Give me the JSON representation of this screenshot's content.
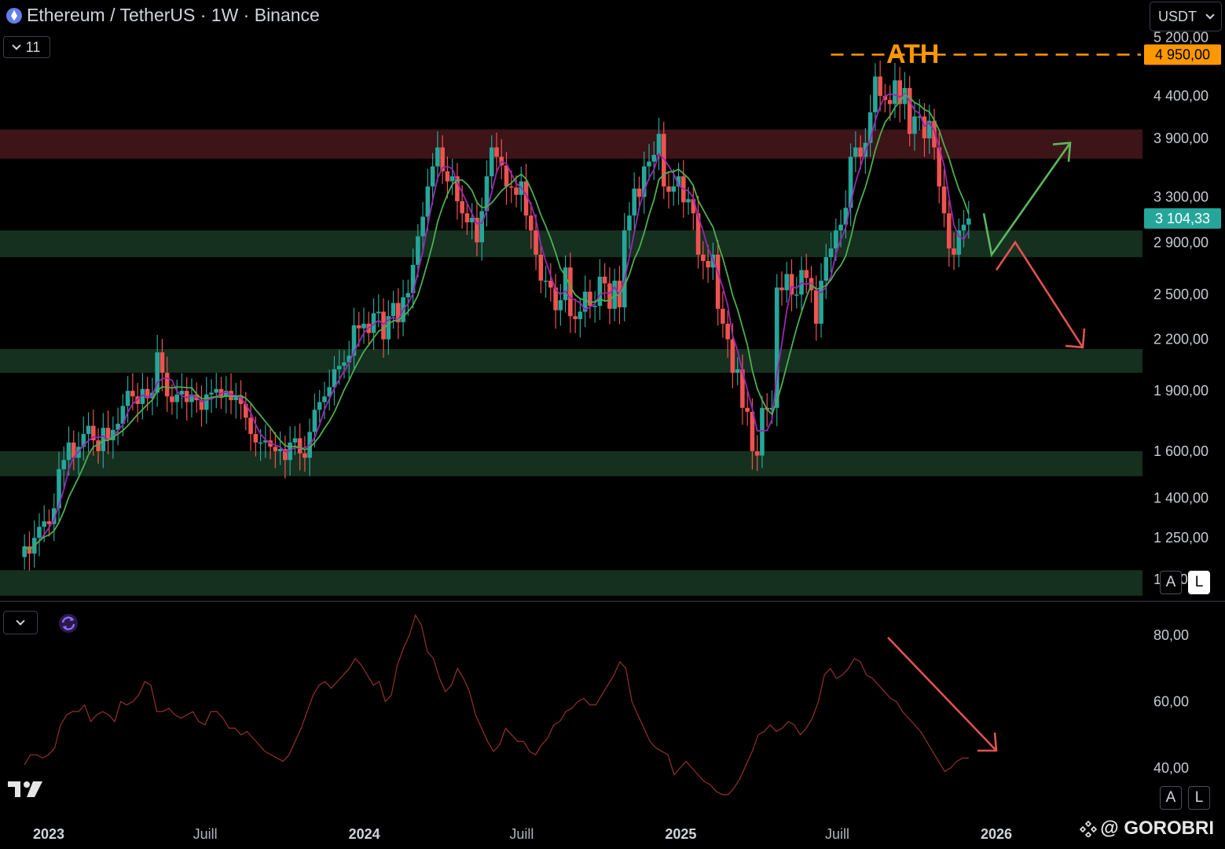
{
  "header": {
    "title": "Ethereum / TetherUS · 1W · Binance",
    "indicator_count": "11",
    "currency": "USDT"
  },
  "scale_buttons": {
    "auto": "A",
    "log": "L"
  },
  "annotation": {
    "ath_label": "ATH"
  },
  "watermark": {
    "text": "@ GOROBRI"
  },
  "colors": {
    "up": "#26a69a",
    "down": "#ef5350",
    "ma_purple": "#9c27b0",
    "ma_green": "#4caf50",
    "ath": "#ff9800",
    "resistance_zone": "#3d1418",
    "support_zone": "#163020",
    "last_price_bg": "#26a69a",
    "rsi_line": "#8b2d2d",
    "arrow_up": "#5cb85c",
    "arrow_down": "#e0524f"
  },
  "icons": [
    "ethereum-coin-icon",
    "chevron-down-icon",
    "refresh-icon",
    "tradingview-logo-icon",
    "binance-square-icon"
  ],
  "chart_data": [
    {
      "type": "candlestick",
      "title": "Ethereum / TetherUS · 1W · Binance",
      "scale": "log",
      "y_ticks": [
        "5 200,00",
        "4 400,00",
        "3 900,00",
        "3 300,00",
        "2 900,00",
        "2 500,00",
        "2 200,00",
        "1 900,00",
        "1 600,00",
        "1 400,00",
        "1 250,00",
        "1 110,00"
      ],
      "y_tick_values": [
        5200,
        4400,
        3900,
        3300,
        2900,
        2500,
        2200,
        1900,
        1600,
        1400,
        1250,
        1110
      ],
      "x_ticks": [
        "2023",
        "Juill",
        "2024",
        "Juill",
        "2025",
        "Juill",
        "2026"
      ],
      "x_tick_dates": [
        "2023-01-01",
        "2023-07-01",
        "2024-01-01",
        "2024-07-01",
        "2025-01-01",
        "2025-07-01",
        "2026-01-01"
      ],
      "ath_price": "4 950,00",
      "ath_value": 4950,
      "last_price": "3 104,33",
      "last_value": 3104.33,
      "zones": [
        {
          "kind": "resistance",
          "low": 3680,
          "high": 4000
        },
        {
          "kind": "support",
          "low": 2780,
          "high": 3000
        },
        {
          "kind": "support",
          "low": 2000,
          "high": 2140
        },
        {
          "kind": "support",
          "low": 1490,
          "high": 1600
        },
        {
          "kind": "support",
          "low": 1060,
          "high": 1140
        }
      ],
      "projection": [
        {
          "direction": "up",
          "from": 2800,
          "to": 3850
        },
        {
          "direction": "down",
          "from": 2900,
          "to": 2150
        }
      ],
      "series_close": [
        1220,
        1195,
        1250,
        1290,
        1310,
        1300,
        1360,
        1520,
        1560,
        1640,
        1570,
        1620,
        1680,
        1720,
        1650,
        1600,
        1710,
        1650,
        1700,
        1730,
        1820,
        1900,
        1870,
        1830,
        1910,
        1860,
        1890,
        2120,
        2000,
        1870,
        1840,
        1880,
        1900,
        1840,
        1880,
        1850,
        1800,
        1880,
        1890,
        1910,
        1870,
        1900,
        1850,
        1870,
        1830,
        1760,
        1680,
        1640,
        1640,
        1650,
        1620,
        1600,
        1610,
        1560,
        1640,
        1660,
        1590,
        1570,
        1690,
        1800,
        1840,
        1870,
        1920,
        2020,
        2040,
        2060,
        2100,
        2290,
        2270,
        2300,
        2240,
        2370,
        2380,
        2200,
        2350,
        2440,
        2310,
        2480,
        2510,
        2720,
        2950,
        3120,
        3400,
        3600,
        3800,
        3550,
        3450,
        3500,
        3260,
        3150,
        3070,
        3110,
        2900,
        3170,
        3500,
        3800,
        3700,
        3610,
        3400,
        3390,
        3320,
        3450,
        3130,
        3000,
        2800,
        2600,
        2600,
        2550,
        2390,
        2460,
        2700,
        2350,
        2330,
        2380,
        2520,
        2420,
        2420,
        2630,
        2580,
        2400,
        2600,
        2410,
        3000,
        3130,
        3380,
        3300,
        3600,
        3650,
        3720,
        3950,
        3400,
        3350,
        3400,
        3500,
        3250,
        3280,
        3150,
        2800,
        2750,
        2700,
        2800,
        2400,
        2300,
        2200,
        2000,
        2020,
        1810,
        1790,
        1600,
        1580,
        1810,
        1800,
        1810,
        2550,
        2530,
        2650,
        2500,
        2500,
        2680,
        2620,
        2530,
        2300,
        2600,
        2780,
        2850,
        3000,
        3050,
        3200,
        3700,
        3800,
        3700,
        3850,
        4200,
        4650,
        4400,
        4350,
        4300,
        4600,
        4300,
        4500,
        3950,
        4150,
        4150,
        3900,
        4100,
        3800,
        3400,
        3150,
        2850,
        2800,
        3000,
        3050,
        3104
      ]
    },
    {
      "type": "line",
      "indicator": "RSI",
      "y_ticks": [
        "80,00",
        "60,00",
        "40,00"
      ],
      "ylim": [
        30,
        88
      ],
      "x_start": "2022-12-04",
      "x_step_days": 7,
      "values": [
        41,
        44,
        44,
        43,
        44,
        46,
        53,
        56,
        57,
        57,
        59,
        54,
        56,
        57,
        56,
        54,
        60,
        59,
        60,
        62,
        66,
        65,
        57,
        57,
        58,
        56,
        55,
        56,
        57,
        54,
        53,
        57,
        57,
        55,
        52,
        52,
        50,
        51,
        49,
        47,
        45,
        44,
        43,
        42,
        44,
        48,
        52,
        57,
        62,
        65,
        66,
        64,
        66,
        68,
        70,
        73,
        71,
        68,
        65,
        66,
        60,
        62,
        71,
        76,
        80,
        86,
        83,
        75,
        73,
        67,
        63,
        65,
        70,
        67,
        63,
        56,
        52,
        48,
        45,
        47,
        52,
        50,
        48,
        48,
        45,
        44,
        47,
        49,
        53,
        54,
        57,
        58,
        60,
        61,
        59,
        59,
        62,
        65,
        68,
        72,
        70,
        60,
        56,
        52,
        48,
        46,
        45,
        44,
        38,
        40,
        42,
        40,
        38,
        36,
        35,
        33,
        32,
        32,
        34,
        37,
        41,
        45,
        50,
        51,
        53,
        51,
        52,
        54,
        53,
        50,
        52,
        55,
        60,
        68,
        70,
        67,
        68,
        70,
        73,
        72,
        68,
        67,
        65,
        63,
        61,
        60,
        57,
        55,
        53,
        51,
        48,
        45,
        42,
        39,
        40,
        42,
        43,
        43
      ],
      "trend_arrow": {
        "from_value": 76,
        "to_value": 45
      }
    }
  ]
}
